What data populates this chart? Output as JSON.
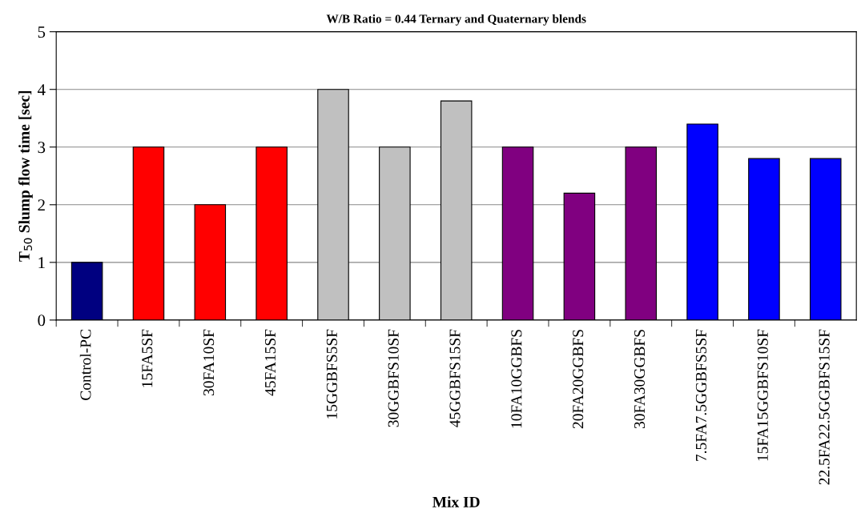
{
  "chart_data": {
    "type": "bar",
    "title": "W/B Ratio = 0.44 Ternary and Quaternary blends",
    "xlabel": "Mix ID",
    "ylabel": "T$_{50}$ Slump flow time [sec]",
    "categories": [
      "Control-PC",
      "15FA5SF",
      "30FA10SF",
      "45FA15SF",
      "15GGBFS5SF",
      "30GGBFS10SF",
      "45GGBFS15SF",
      "10FA10GGBFS",
      "20FA20GGBFS",
      "30FA30GGBFS",
      "7.5FA7.5GGBFS5SF",
      "15FA15GGBFS10SF",
      "22.5FA22.5GGBFS15SF"
    ],
    "values": [
      1,
      3,
      2,
      3,
      4,
      3,
      3.8,
      3,
      2.2,
      3,
      3.4,
      2.8,
      2.8
    ],
    "colors": [
      "#000080",
      "#ff0000",
      "#ff0000",
      "#ff0000",
      "#c0c0c0",
      "#c0c0c0",
      "#c0c0c0",
      "#800080",
      "#800080",
      "#800080",
      "#0000ff",
      "#0000ff",
      "#0000ff"
    ],
    "ylim": [
      0,
      5
    ],
    "yticks": [
      0,
      1,
      2,
      3,
      4,
      5
    ],
    "grid": "y",
    "legend": false
  }
}
